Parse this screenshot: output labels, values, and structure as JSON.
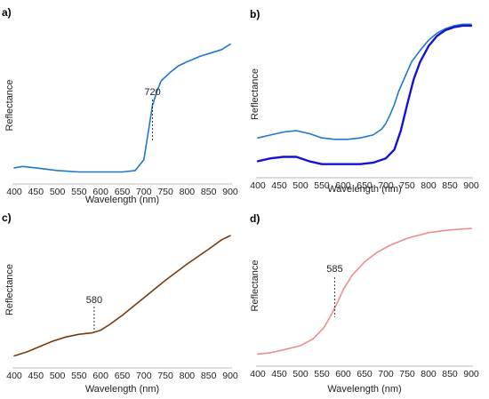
{
  "chart_data": [
    {
      "panel": "a)",
      "type": "line",
      "title": "",
      "xlabel": "Wavelength (nm)",
      "ylabel": "Reflectance",
      "xlim": [
        400,
        900
      ],
      "ylim": [
        0,
        1
      ],
      "xticks": [
        "400",
        "450",
        "500",
        "550",
        "600",
        "650",
        "700",
        "750",
        "800",
        "850",
        "900"
      ],
      "grid": false,
      "annotations": [
        {
          "text": "720",
          "x": 720
        }
      ],
      "series": [
        {
          "color": "#1f78c8",
          "x": [
            400,
            420,
            450,
            500,
            550,
            600,
            650,
            680,
            700,
            710,
            720,
            730,
            740,
            760,
            780,
            800,
            830,
            860,
            880,
            900
          ],
          "y": [
            0.04,
            0.05,
            0.04,
            0.02,
            0.01,
            0.01,
            0.01,
            0.02,
            0.1,
            0.3,
            0.5,
            0.6,
            0.68,
            0.74,
            0.79,
            0.82,
            0.86,
            0.89,
            0.91,
            0.95
          ]
        }
      ]
    },
    {
      "panel": "b)",
      "type": "line",
      "title": "",
      "xlabel": "Wavelength (nm)",
      "ylabel": "Reflectance",
      "xlim": [
        400,
        900
      ],
      "ylim": [
        0,
        1
      ],
      "xticks": [
        "400",
        "450",
        "500",
        "550",
        "600",
        "650",
        "700",
        "750",
        "800",
        "850",
        "900"
      ],
      "grid": false,
      "series": [
        {
          "color": "#1f78c8",
          "x": [
            400,
            430,
            460,
            490,
            520,
            550,
            580,
            610,
            640,
            670,
            690,
            700,
            710,
            720,
            730,
            745,
            760,
            780,
            800,
            820,
            840,
            860,
            880,
            900
          ],
          "y": [
            0.2,
            0.22,
            0.24,
            0.25,
            0.23,
            0.2,
            0.19,
            0.19,
            0.2,
            0.22,
            0.26,
            0.3,
            0.36,
            0.43,
            0.52,
            0.62,
            0.72,
            0.8,
            0.87,
            0.92,
            0.95,
            0.97,
            0.98,
            0.98
          ]
        },
        {
          "color": "#1414d2",
          "x": [
            400,
            430,
            460,
            490,
            520,
            550,
            580,
            610,
            640,
            670,
            700,
            720,
            735,
            750,
            765,
            780,
            800,
            820,
            840,
            860,
            880,
            900
          ],
          "y": [
            0.04,
            0.06,
            0.07,
            0.07,
            0.04,
            0.02,
            0.02,
            0.02,
            0.02,
            0.03,
            0.06,
            0.12,
            0.25,
            0.43,
            0.6,
            0.72,
            0.83,
            0.9,
            0.94,
            0.96,
            0.97,
            0.97
          ]
        }
      ]
    },
    {
      "panel": "c)",
      "type": "line",
      "title": "",
      "xlabel": "Wavelength (nm)",
      "ylabel": "Reflectance",
      "xlim": [
        400,
        900
      ],
      "ylim": [
        0,
        1
      ],
      "xticks": [
        "400",
        "450",
        "500",
        "550",
        "600",
        "650",
        "700",
        "750",
        "800",
        "850",
        "900"
      ],
      "grid": false,
      "annotations": [
        {
          "text": "580",
          "x": 585
        }
      ],
      "series": [
        {
          "color": "#7a3b0c",
          "x": [
            400,
            430,
            460,
            490,
            520,
            550,
            580,
            600,
            620,
            650,
            700,
            750,
            800,
            850,
            880,
            900
          ],
          "y": [
            0.01,
            0.04,
            0.08,
            0.12,
            0.15,
            0.17,
            0.18,
            0.2,
            0.24,
            0.31,
            0.44,
            0.57,
            0.69,
            0.8,
            0.87,
            0.9
          ]
        }
      ]
    },
    {
      "panel": "d)",
      "type": "line",
      "title": "",
      "xlabel": "Wavelength (nm)",
      "ylabel": "Reflectance",
      "xlim": [
        400,
        900
      ],
      "ylim": [
        0,
        1
      ],
      "xticks": [
        "400",
        "450",
        "500",
        "550",
        "600",
        "650",
        "700",
        "750",
        "800",
        "850",
        "900"
      ],
      "grid": false,
      "annotations": [
        {
          "text": "585",
          "x": 580
        }
      ],
      "series": [
        {
          "color": "#f08c8c",
          "x": [
            400,
            430,
            460,
            500,
            530,
            555,
            570,
            585,
            600,
            620,
            650,
            680,
            710,
            750,
            800,
            850,
            900
          ],
          "y": [
            0.01,
            0.02,
            0.04,
            0.07,
            0.12,
            0.2,
            0.28,
            0.37,
            0.47,
            0.57,
            0.67,
            0.74,
            0.79,
            0.84,
            0.88,
            0.9,
            0.91
          ]
        }
      ]
    }
  ]
}
